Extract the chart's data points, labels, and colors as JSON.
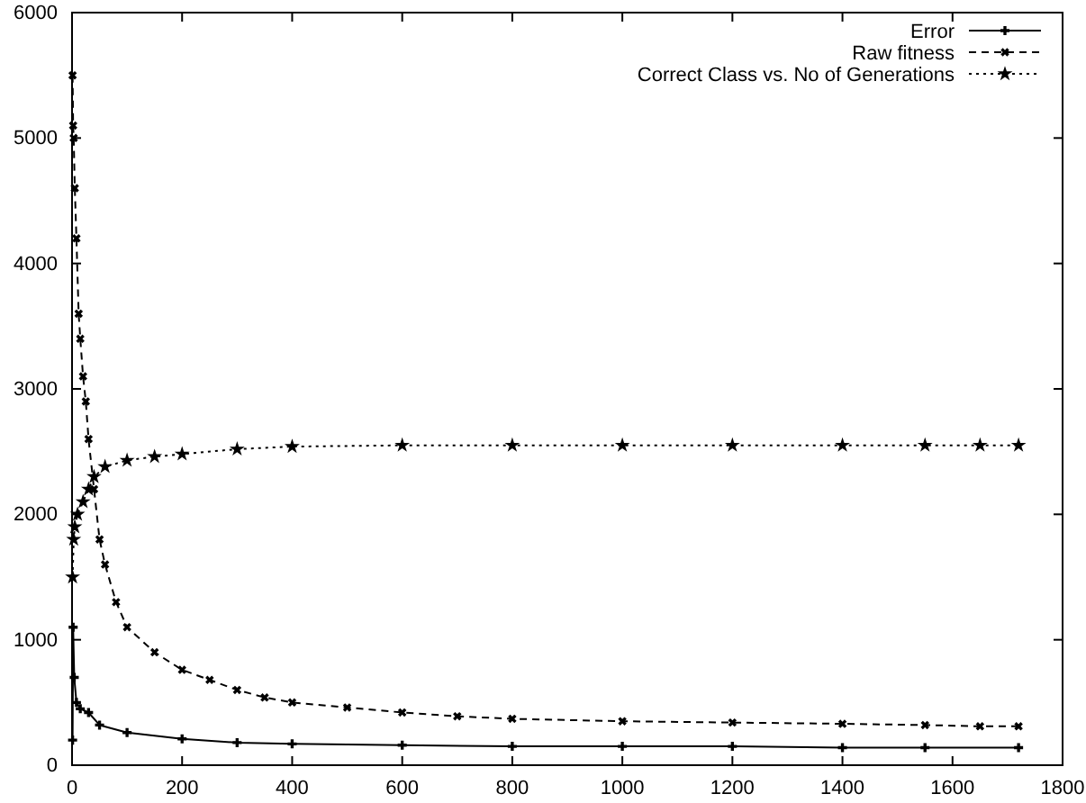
{
  "chart_data": {
    "type": "line",
    "xlim": [
      0,
      1800
    ],
    "ylim": [
      0,
      6000
    ],
    "xticks": [
      0,
      200,
      400,
      600,
      800,
      1000,
      1200,
      1400,
      1600,
      1800
    ],
    "yticks": [
      0,
      1000,
      2000,
      3000,
      4000,
      5000,
      6000
    ],
    "legend": "top right",
    "grid": false,
    "series": [
      {
        "name": "Error",
        "color": "#000000",
        "marker": "cross",
        "line_style": "solid",
        "x": [
          1,
          2,
          4,
          8,
          15,
          30,
          50,
          100,
          200,
          300,
          400,
          600,
          800,
          1000,
          1200,
          1400,
          1550,
          1720
        ],
        "values": [
          200,
          1100,
          700,
          500,
          450,
          420,
          320,
          260,
          210,
          180,
          170,
          160,
          150,
          150,
          150,
          140,
          140,
          140
        ]
      },
      {
        "name": "Raw fitness",
        "color": "#000000",
        "marker": "x",
        "line_style": "dashed",
        "x": [
          1,
          2,
          3,
          5,
          8,
          12,
          15,
          20,
          25,
          30,
          40,
          50,
          60,
          80,
          100,
          150,
          200,
          250,
          300,
          350,
          400,
          500,
          600,
          700,
          800,
          1000,
          1200,
          1400,
          1550,
          1650,
          1720
        ],
        "values": [
          5500,
          5100,
          5000,
          4600,
          4200,
          3600,
          3400,
          3100,
          2900,
          2600,
          2200,
          1800,
          1600,
          1300,
          1100,
          900,
          760,
          680,
          600,
          540,
          500,
          460,
          420,
          390,
          370,
          350,
          340,
          330,
          320,
          310,
          310
        ]
      },
      {
        "name": "Correct Class vs. No of Generations",
        "color": "#000000",
        "marker": "star",
        "line_style": "dotted",
        "x": [
          1,
          3,
          5,
          10,
          20,
          30,
          40,
          60,
          100,
          150,
          200,
          300,
          400,
          600,
          800,
          1000,
          1200,
          1400,
          1550,
          1650,
          1720
        ],
        "values": [
          1500,
          1800,
          1900,
          2000,
          2100,
          2200,
          2300,
          2380,
          2430,
          2460,
          2480,
          2520,
          2540,
          2550,
          2550,
          2550,
          2550,
          2550,
          2550,
          2550,
          2550
        ]
      }
    ]
  }
}
